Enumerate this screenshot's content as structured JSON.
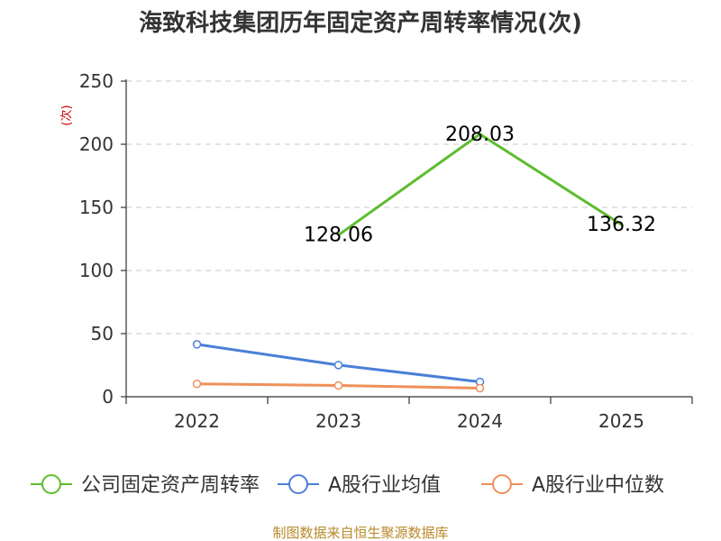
{
  "chart_data": {
    "type": "line",
    "title": "海致科技集团历年固定资产周转率情况(次)",
    "ylabel": "(次)",
    "xlabel": "",
    "categories": [
      "2022",
      "2023",
      "2024",
      "2025"
    ],
    "ylim": [
      0,
      250
    ],
    "yticks": [
      0,
      50,
      100,
      150,
      200,
      250
    ],
    "grid": true,
    "legend_position": "bottom",
    "series": [
      {
        "name": "公司固定资产周转率",
        "color": "#5dbd2e",
        "values": [
          null,
          128.06,
          208.03,
          136.32
        ],
        "labels": [
          "",
          "128.06",
          "208.03",
          "136.32"
        ],
        "show_markers": false
      },
      {
        "name": "A股行业均值",
        "color": "#4a7fd8",
        "values": [
          41.5,
          25.1,
          11.8,
          null
        ],
        "labels": [
          "",
          "",
          "",
          ""
        ],
        "show_markers": true
      },
      {
        "name": "A股行业中位数",
        "color": "#f0905a",
        "values": [
          10.2,
          8.9,
          6.8,
          null
        ],
        "labels": [
          "",
          "",
          "",
          ""
        ],
        "show_markers": true
      }
    ]
  },
  "source": "制图数据来自恒生聚源数据库"
}
